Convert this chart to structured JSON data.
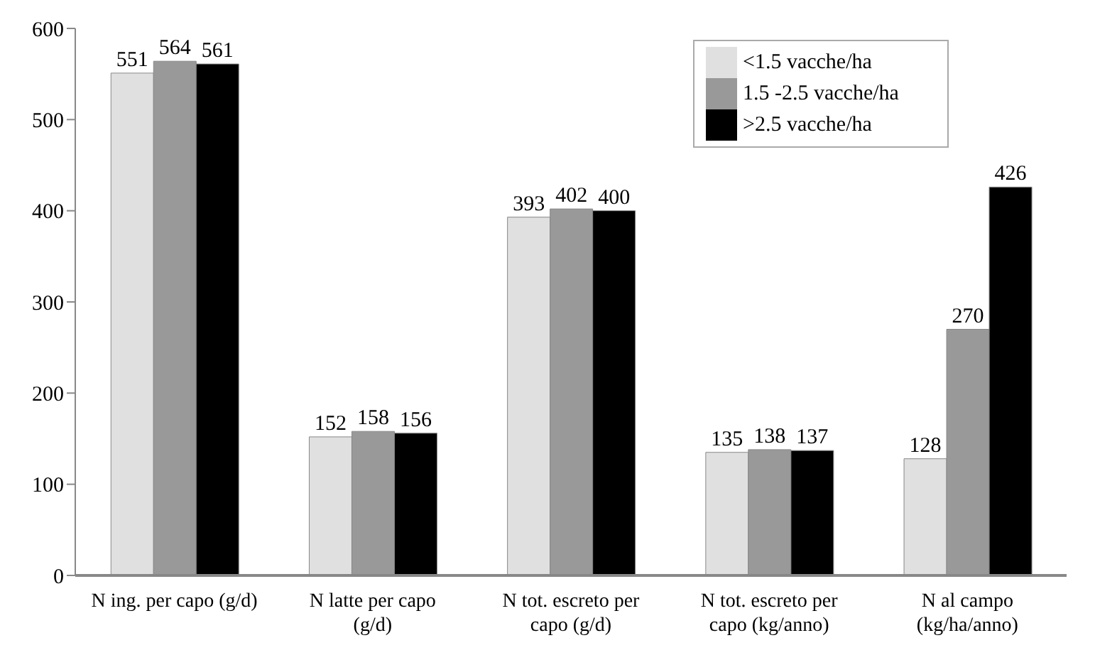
{
  "chart_data": {
    "type": "bar",
    "categories": [
      "N ing. per capo (g/d)",
      "N latte per capo (g/d)",
      "N tot. escreto per capo (g/d)",
      "N tot. escreto per capo (kg/anno)",
      "N al campo (kg/ha/anno)"
    ],
    "series": [
      {
        "name": "<1.5 vacche/ha",
        "color": "#e0e0e0",
        "values": [
          551,
          152,
          393,
          135,
          128
        ]
      },
      {
        "name": "1.5 -2.5 vacche/ha",
        "color": "#999999",
        "values": [
          564,
          158,
          402,
          138,
          270
        ]
      },
      {
        "name": ">2.5 vacche/ha",
        "color": "#000000",
        "values": [
          561,
          156,
          400,
          137,
          426
        ]
      }
    ],
    "ylim": [
      0,
      600
    ],
    "yticks": [
      0,
      100,
      200,
      300,
      400,
      500,
      600
    ],
    "grid": false,
    "legend": "top right",
    "data_labels": true
  }
}
